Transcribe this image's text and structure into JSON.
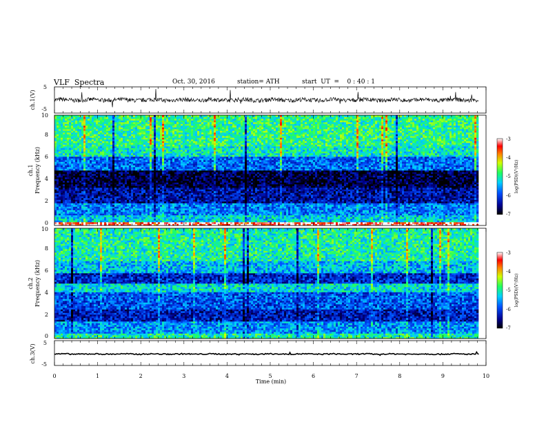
{
  "header": {
    "title": "VLF  Spectra",
    "date": "Oct. 30, 2016",
    "station": "station= ATH",
    "start": "start  UT  =    0 : 40 : 1"
  },
  "chart_data": [
    {
      "type": "line",
      "panel": "ch1-waveform",
      "ylabel": "ch.1(V)",
      "yticks": [
        "5",
        "-5"
      ],
      "ylim": [
        -5,
        5
      ],
      "xlim": [
        0,
        10
      ],
      "trace_color": "#000000",
      "description_values": {
        "baseline_V": 0,
        "noise_amplitude_V": 1
      }
    },
    {
      "type": "heatmap",
      "panel": "ch1-spectrogram",
      "ylabel": "ch.1\nFrequency  (kHz)",
      "ylabel_lines": [
        "ch.1",
        "Frequency  (kHz)"
      ],
      "yticks": [
        "0",
        "2",
        "4",
        "6",
        "8",
        "10"
      ],
      "ylim": [
        0,
        10
      ],
      "xlim": [
        0,
        9.83
      ],
      "colorbar": {
        "label": "log(PSD)(V²/Hz)",
        "ticks": [
          "-3",
          "-4",
          "-5",
          "-6",
          "-7"
        ],
        "range": [
          -7,
          -3
        ]
      },
      "bands": [
        {
          "f0": 0.0,
          "f1": 0.3,
          "level": -3.2
        },
        {
          "f0": 0.3,
          "f1": 1.0,
          "level": -5.3
        },
        {
          "f0": 1.0,
          "f1": 2.0,
          "level": -5.7
        },
        {
          "f0": 2.0,
          "f1": 3.5,
          "level": -6.4
        },
        {
          "f0": 3.5,
          "f1": 5.0,
          "level": -6.8
        },
        {
          "f0": 5.0,
          "f1": 6.3,
          "level": -5.8
        },
        {
          "f0": 6.3,
          "f1": 7.2,
          "level": -5.1
        },
        {
          "f0": 7.2,
          "f1": 10.0,
          "level": -4.9
        }
      ]
    },
    {
      "type": "heatmap",
      "panel": "ch2-spectrogram",
      "ylabel": "ch.2\nFrequency  (kHz)",
      "ylabel_lines": [
        "ch.2",
        "Frequency  (kHz)"
      ],
      "yticks": [
        "0",
        "2",
        "4",
        "6",
        "8",
        "10"
      ],
      "ylim": [
        0,
        10
      ],
      "xlim": [
        0,
        9.83
      ],
      "colorbar": {
        "label": "log(PSD)(V²/Hz)",
        "ticks": [
          "-3",
          "-4",
          "-5",
          "-6",
          "-7"
        ],
        "range": [
          -7,
          -3
        ]
      },
      "bands": [
        {
          "f0": 0.0,
          "f1": 0.4,
          "level": -5.0
        },
        {
          "f0": 0.4,
          "f1": 1.6,
          "level": -5.6
        },
        {
          "f0": 1.6,
          "f1": 2.6,
          "level": -6.3
        },
        {
          "f0": 2.6,
          "f1": 4.2,
          "level": -5.9
        },
        {
          "f0": 4.2,
          "f1": 5.0,
          "level": -5.2
        },
        {
          "f0": 5.0,
          "f1": 6.0,
          "level": -6.2
        },
        {
          "f0": 6.0,
          "f1": 7.0,
          "level": -5.4
        },
        {
          "f0": 7.0,
          "f1": 10.0,
          "level": -5.0
        }
      ]
    },
    {
      "type": "line",
      "panel": "ch3-waveform",
      "ylabel": "ch.3(V)",
      "yticks": [
        "5",
        "-5"
      ],
      "ylim": [
        -5,
        5
      ],
      "xlim": [
        0,
        10
      ],
      "xlabel": "Time  (min)",
      "xticks": [
        "0",
        "1",
        "2",
        "3",
        "4",
        "5",
        "6",
        "7",
        "8",
        "9",
        "10"
      ],
      "trace_color": "#000000",
      "description_values": {
        "baseline_V": -0.4,
        "noise_amplitude_V": 0.3
      }
    }
  ]
}
